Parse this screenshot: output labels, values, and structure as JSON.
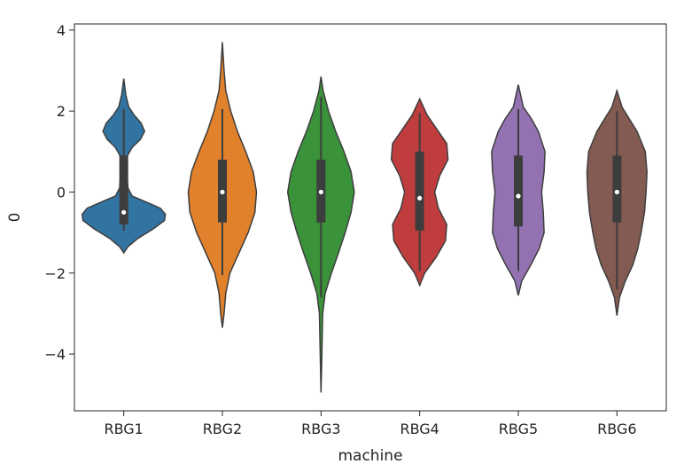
{
  "chart_data": {
    "type": "violin",
    "xlabel": "machine",
    "ylabel": "0",
    "ylim": [
      -5.4,
      4.15
    ],
    "yticks": [
      4,
      2,
      0,
      -2,
      -4
    ],
    "ytick_labels": [
      "4",
      "2",
      "0",
      "−2",
      "−4"
    ],
    "grid": false,
    "categories": [
      "RBG1",
      "RBG2",
      "RBG3",
      "RBG4",
      "RBG5",
      "RBG6"
    ],
    "series": [
      {
        "category": "RBG1",
        "color": "#3274a1",
        "range": [
          -1.5,
          2.8
        ],
        "whisker": [
          -0.95,
          2.05
        ],
        "q1": -0.8,
        "median": -0.5,
        "q3": 0.9,
        "profile": [
          [
            -1.5,
            0.0
          ],
          [
            -1.35,
            0.1
          ],
          [
            -1.15,
            0.33
          ],
          [
            -0.9,
            0.72
          ],
          [
            -0.7,
            0.98
          ],
          [
            -0.55,
            1.0
          ],
          [
            -0.4,
            0.88
          ],
          [
            -0.25,
            0.55
          ],
          [
            -0.1,
            0.2
          ],
          [
            0.1,
            0.1
          ],
          [
            0.4,
            0.08
          ],
          [
            0.7,
            0.07
          ],
          [
            0.9,
            0.09
          ],
          [
            1.1,
            0.2
          ],
          [
            1.3,
            0.4
          ],
          [
            1.5,
            0.5
          ],
          [
            1.7,
            0.42
          ],
          [
            1.9,
            0.25
          ],
          [
            2.1,
            0.12
          ],
          [
            2.4,
            0.05
          ],
          [
            2.8,
            0.0
          ]
        ]
      },
      {
        "category": "RBG2",
        "color": "#e1812c",
        "range": [
          -3.35,
          3.7
        ],
        "whisker": [
          -2.05,
          2.05
        ],
        "q1": -0.75,
        "median": 0.0,
        "q3": 0.8,
        "profile": [
          [
            -3.35,
            0.0
          ],
          [
            -3.0,
            0.04
          ],
          [
            -2.5,
            0.08
          ],
          [
            -2.0,
            0.18
          ],
          [
            -1.5,
            0.4
          ],
          [
            -1.0,
            0.62
          ],
          [
            -0.5,
            0.78
          ],
          [
            0.0,
            0.82
          ],
          [
            0.5,
            0.74
          ],
          [
            1.0,
            0.56
          ],
          [
            1.5,
            0.36
          ],
          [
            2.0,
            0.2
          ],
          [
            2.5,
            0.08
          ],
          [
            3.0,
            0.04
          ],
          [
            3.7,
            0.0
          ]
        ]
      },
      {
        "category": "RBG3",
        "color": "#3a923a",
        "range": [
          -4.95,
          2.85
        ],
        "whisker": [
          -2.6,
          2.35
        ],
        "q1": -0.75,
        "median": 0.0,
        "q3": 0.8,
        "profile": [
          [
            -4.95,
            0.0
          ],
          [
            -4.0,
            0.02
          ],
          [
            -3.0,
            0.04
          ],
          [
            -2.5,
            0.1
          ],
          [
            -2.0,
            0.25
          ],
          [
            -1.5,
            0.42
          ],
          [
            -1.0,
            0.58
          ],
          [
            -0.5,
            0.72
          ],
          [
            0.0,
            0.8
          ],
          [
            0.5,
            0.72
          ],
          [
            1.0,
            0.55
          ],
          [
            1.5,
            0.35
          ],
          [
            2.0,
            0.18
          ],
          [
            2.5,
            0.05
          ],
          [
            2.85,
            0.0
          ]
        ]
      },
      {
        "category": "RBG4",
        "color": "#c03d3e",
        "range": [
          -2.3,
          2.3
        ],
        "whisker": [
          -1.95,
          1.95
        ],
        "q1": -0.95,
        "median": -0.15,
        "q3": 1.0,
        "profile": [
          [
            -2.3,
            0.0
          ],
          [
            -2.0,
            0.12
          ],
          [
            -1.6,
            0.4
          ],
          [
            -1.2,
            0.62
          ],
          [
            -0.8,
            0.65
          ],
          [
            -0.4,
            0.45
          ],
          [
            0.0,
            0.36
          ],
          [
            0.4,
            0.48
          ],
          [
            0.8,
            0.68
          ],
          [
            1.2,
            0.65
          ],
          [
            1.6,
            0.38
          ],
          [
            1.9,
            0.18
          ],
          [
            2.3,
            0.0
          ]
        ]
      },
      {
        "category": "RBG5",
        "color": "#9372b2",
        "range": [
          -2.55,
          2.65
        ],
        "whisker": [
          -1.95,
          2.05
        ],
        "q1": -0.85,
        "median": -0.1,
        "q3": 0.9,
        "profile": [
          [
            -2.55,
            0.0
          ],
          [
            -2.2,
            0.08
          ],
          [
            -1.8,
            0.3
          ],
          [
            -1.4,
            0.5
          ],
          [
            -1.0,
            0.62
          ],
          [
            -0.5,
            0.6
          ],
          [
            0.0,
            0.56
          ],
          [
            0.5,
            0.62
          ],
          [
            1.0,
            0.64
          ],
          [
            1.5,
            0.48
          ],
          [
            1.8,
            0.32
          ],
          [
            2.1,
            0.12
          ],
          [
            2.65,
            0.0
          ]
        ]
      },
      {
        "category": "RBG6",
        "color": "#845b53",
        "range": [
          -3.05,
          2.5
        ],
        "whisker": [
          -2.4,
          2.0
        ],
        "q1": -0.75,
        "median": 0.0,
        "q3": 0.9,
        "profile": [
          [
            -3.05,
            0.0
          ],
          [
            -2.6,
            0.06
          ],
          [
            -2.2,
            0.2
          ],
          [
            -1.8,
            0.38
          ],
          [
            -1.4,
            0.5
          ],
          [
            -1.0,
            0.58
          ],
          [
            -0.5,
            0.66
          ],
          [
            0.0,
            0.7
          ],
          [
            0.5,
            0.72
          ],
          [
            1.0,
            0.68
          ],
          [
            1.5,
            0.48
          ],
          [
            1.8,
            0.3
          ],
          [
            2.1,
            0.12
          ],
          [
            2.5,
            0.0
          ]
        ]
      }
    ]
  }
}
